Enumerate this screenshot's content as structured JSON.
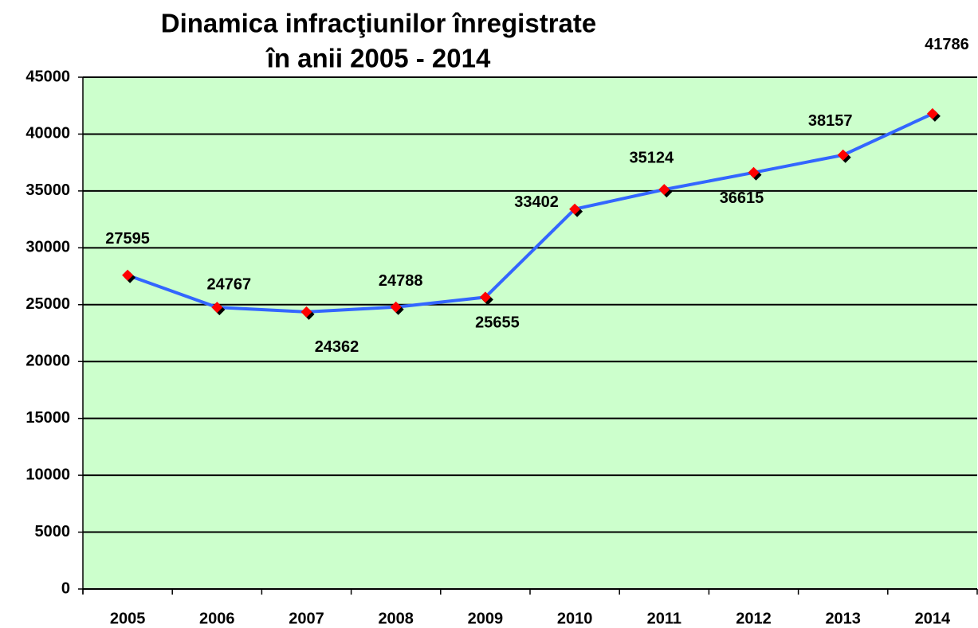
{
  "chart_data": {
    "type": "line",
    "title": [
      "Dinamica infracţiunilor înregistrate",
      "în anii 2005 - 2014"
    ],
    "categories": [
      "2005",
      "2006",
      "2007",
      "2008",
      "2009",
      "2010",
      "2011",
      "2012",
      "2013",
      "2014"
    ],
    "series": [
      {
        "color": "#3366ff",
        "marker_color": "#ff0000",
        "values": [
          27595,
          24767,
          24362,
          24788,
          25655,
          33402,
          35124,
          36615,
          38157,
          41786
        ]
      }
    ],
    "ylim": [
      0,
      45000
    ],
    "yticks": [
      0,
      5000,
      10000,
      15000,
      20000,
      25000,
      30000,
      35000,
      40000,
      45000
    ],
    "grid": true,
    "background": "#ccffcc"
  }
}
